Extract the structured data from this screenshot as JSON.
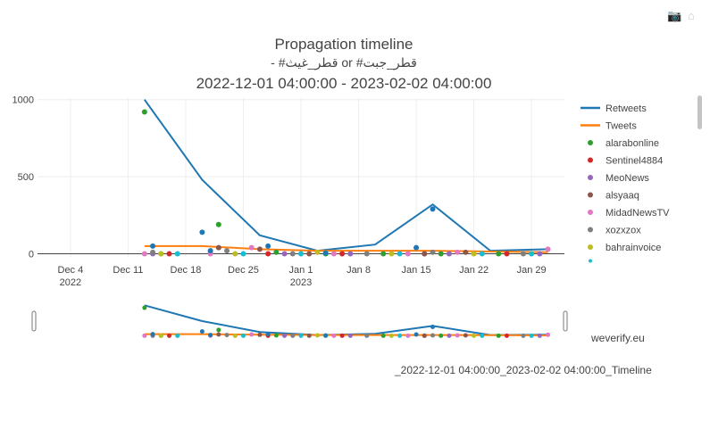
{
  "toolbar": {
    "camera_icon": "camera-icon",
    "home_icon": "home-icon"
  },
  "title": {
    "line1": "Propagation timeline",
    "line2": "قطر_جبت# or قطر_غيث# -",
    "line3": "2022-12-01 04:00:00 - 2023-02-02 04:00:00"
  },
  "brand": "weverify.eu",
  "filename": "_2022-12-01 04:00:00_2023-02-02 04:00:00_Timeline",
  "chart_data": {
    "type": "line",
    "x_ticks": [
      {
        "date": "2022-12-04",
        "label": "Dec 4",
        "sublabel": "2022"
      },
      {
        "date": "2022-12-11",
        "label": "Dec 11"
      },
      {
        "date": "2022-12-18",
        "label": "Dec 18"
      },
      {
        "date": "2022-12-25",
        "label": "Dec 25"
      },
      {
        "date": "2023-01-01",
        "label": "Jan 1",
        "sublabel": "2023"
      },
      {
        "date": "2023-01-08",
        "label": "Jan 8"
      },
      {
        "date": "2023-01-15",
        "label": "Jan 15"
      },
      {
        "date": "2023-01-22",
        "label": "Jan 22"
      },
      {
        "date": "2023-01-29",
        "label": "Jan 29"
      }
    ],
    "xlim": [
      "2022-11-30",
      "2023-02-02"
    ],
    "ylim": [
      -20,
      1010
    ],
    "y_ticks": [
      0,
      500,
      1000
    ],
    "grid": true,
    "legend_position": "right",
    "series": [
      {
        "name": "Retweets",
        "kind": "line",
        "color": "#1f77b4",
        "points": [
          [
            "2022-12-13",
            1000
          ],
          [
            "2022-12-20",
            480
          ],
          [
            "2022-12-27",
            120
          ],
          [
            "2023-01-03",
            20
          ],
          [
            "2023-01-10",
            60
          ],
          [
            "2023-01-17",
            320
          ],
          [
            "2023-01-24",
            20
          ],
          [
            "2023-01-31",
            30
          ]
        ]
      },
      {
        "name": "Tweets",
        "kind": "line",
        "color": "#ff7f0e",
        "points": [
          [
            "2022-12-13",
            50
          ],
          [
            "2022-12-20",
            50
          ],
          [
            "2022-12-27",
            30
          ],
          [
            "2023-01-03",
            20
          ],
          [
            "2023-01-10",
            20
          ],
          [
            "2023-01-17",
            20
          ],
          [
            "2023-01-24",
            15
          ],
          [
            "2023-01-31",
            10
          ]
        ]
      },
      {
        "name": "alarabonline",
        "kind": "scatter",
        "color": "#2ca02c",
        "points": [
          [
            "2022-12-13",
            920
          ],
          [
            "2022-12-22",
            190
          ],
          [
            "2022-12-15",
            0
          ],
          [
            "2022-12-29",
            10
          ],
          [
            "2023-01-04",
            0
          ],
          [
            "2023-01-11",
            0
          ],
          [
            "2023-01-18",
            0
          ],
          [
            "2023-01-25",
            0
          ]
        ]
      },
      {
        "name": "Sentinel4884",
        "kind": "scatter",
        "color": "#d62728",
        "points": [
          [
            "2022-12-16",
            0
          ],
          [
            "2022-12-28",
            0
          ],
          [
            "2023-01-06",
            0
          ],
          [
            "2023-01-16",
            0
          ],
          [
            "2023-01-26",
            0
          ]
        ]
      },
      {
        "name": "MeoNews",
        "kind": "scatter",
        "color": "#9467bd",
        "points": [
          [
            "2022-12-14",
            0
          ],
          [
            "2022-12-21",
            5
          ],
          [
            "2022-12-30",
            0
          ],
          [
            "2023-01-07",
            0
          ],
          [
            "2023-01-19",
            0
          ],
          [
            "2023-01-30",
            0
          ]
        ]
      },
      {
        "name": "alsyaaq",
        "kind": "scatter",
        "color": "#8c564b",
        "points": [
          [
            "2022-12-22",
            40
          ],
          [
            "2022-12-27",
            30
          ],
          [
            "2023-01-02",
            0
          ],
          [
            "2023-01-16",
            0
          ],
          [
            "2023-01-21",
            10
          ]
        ]
      },
      {
        "name": "MidadNewsTV",
        "kind": "scatter",
        "color": "#e377c2",
        "points": [
          [
            "2022-12-13",
            0
          ],
          [
            "2022-12-21",
            0
          ],
          [
            "2022-12-26",
            40
          ],
          [
            "2023-01-05",
            0
          ],
          [
            "2023-01-14",
            0
          ],
          [
            "2023-01-20",
            10
          ],
          [
            "2023-01-31",
            30
          ]
        ]
      },
      {
        "name": "xozxzox",
        "kind": "scatter",
        "color": "#7f7f7f",
        "points": [
          [
            "2022-12-14",
            10
          ],
          [
            "2022-12-23",
            20
          ],
          [
            "2022-12-31",
            0
          ],
          [
            "2023-01-09",
            0
          ],
          [
            "2023-01-17",
            10
          ],
          [
            "2023-01-28",
            0
          ]
        ]
      },
      {
        "name": "bahrainvoice",
        "kind": "scatter",
        "color": "#bcbd22",
        "points": [
          [
            "2022-12-15",
            0
          ],
          [
            "2022-12-24",
            0
          ],
          [
            "2023-01-03",
            10
          ],
          [
            "2023-01-12",
            0
          ],
          [
            "2023-01-22",
            0
          ]
        ]
      },
      {
        "name": "",
        "kind": "scatter",
        "color": "#17becf",
        "points": [
          [
            "2022-12-17",
            0
          ],
          [
            "2022-12-25",
            0
          ],
          [
            "2023-01-01",
            0
          ],
          [
            "2023-01-13",
            0
          ],
          [
            "2023-01-23",
            0
          ],
          [
            "2023-01-29",
            0
          ]
        ]
      },
      {
        "name": "",
        "kind": "scatter",
        "color": "#1f77b4",
        "points": [
          [
            "2022-12-14",
            50
          ],
          [
            "2022-12-20",
            140
          ],
          [
            "2022-12-21",
            20
          ],
          [
            "2022-12-28",
            50
          ],
          [
            "2023-01-15",
            40
          ],
          [
            "2023-01-17",
            290
          ],
          [
            "2023-01-04",
            5
          ]
        ]
      }
    ]
  }
}
